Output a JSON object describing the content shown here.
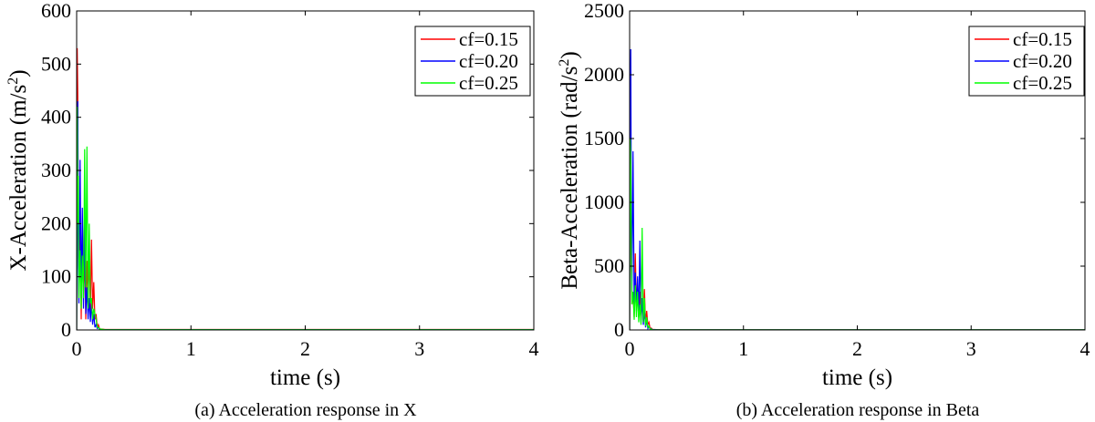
{
  "chart_data": [
    {
      "type": "line",
      "caption": "(a) Acceleration response in X",
      "xlabel": "time (s)",
      "ylabel": "X-Acceleration (m/s",
      "ylabel_sup": "2",
      "ylabel_close": ")",
      "xlim": [
        0,
        4
      ],
      "ylim": [
        0,
        600
      ],
      "xticks": [
        0,
        1,
        2,
        3,
        4
      ],
      "yticks": [
        0,
        100,
        200,
        300,
        400,
        500,
        600
      ],
      "grid": false,
      "legend_position": "top-right",
      "series": [
        {
          "name": "cf=0.15",
          "color": "#ff0000",
          "x": [
            0,
            0.005,
            0.01,
            0.015,
            0.02,
            0.03,
            0.04,
            0.05,
            0.06,
            0.07,
            0.08,
            0.09,
            0.1,
            0.11,
            0.12,
            0.13,
            0.14,
            0.15,
            0.16,
            0.17,
            0.18,
            0.19,
            0.2,
            0.25,
            4
          ],
          "y": [
            0,
            530,
            440,
            140,
            60,
            230,
            20,
            210,
            60,
            140,
            20,
            130,
            60,
            140,
            30,
            170,
            40,
            90,
            20,
            30,
            5,
            10,
            2,
            1,
            1
          ]
        },
        {
          "name": "cf=0.20",
          "color": "#0000ff",
          "x": [
            0,
            0.005,
            0.01,
            0.015,
            0.02,
            0.03,
            0.04,
            0.05,
            0.06,
            0.07,
            0.08,
            0.09,
            0.1,
            0.11,
            0.12,
            0.13,
            0.14,
            0.15,
            0.16,
            0.17,
            0.18,
            0.19,
            0.2,
            0.25,
            4
          ],
          "y": [
            0,
            230,
            430,
            120,
            50,
            320,
            60,
            230,
            40,
            210,
            30,
            80,
            20,
            60,
            15,
            50,
            10,
            30,
            5,
            10,
            3,
            5,
            1,
            0.5,
            0.5
          ]
        },
        {
          "name": "cf=0.25",
          "color": "#00ff00",
          "x": [
            0,
            0.005,
            0.01,
            0.015,
            0.02,
            0.03,
            0.04,
            0.05,
            0.06,
            0.07,
            0.08,
            0.09,
            0.1,
            0.11,
            0.12,
            0.13,
            0.14,
            0.15,
            0.16,
            0.17,
            0.18,
            0.19,
            0.2,
            0.25,
            4
          ],
          "y": [
            0,
            420,
            200,
            290,
            60,
            150,
            40,
            140,
            60,
            340,
            80,
            345,
            40,
            200,
            50,
            60,
            20,
            40,
            30,
            20,
            5,
            5,
            2,
            0.5,
            0.5
          ]
        }
      ]
    },
    {
      "type": "line",
      "caption": "(b) Acceleration response in Beta",
      "xlabel": "time (s)",
      "ylabel": "Beta-Acceleration (rad/s",
      "ylabel_sup": "2",
      "ylabel_close": ")",
      "xlim": [
        0,
        4
      ],
      "ylim": [
        0,
        2500
      ],
      "xticks": [
        0,
        1,
        2,
        3,
        4
      ],
      "yticks": [
        0,
        500,
        1000,
        1500,
        2000,
        2500
      ],
      "grid": false,
      "legend_position": "top-right",
      "series": [
        {
          "name": "cf=0.15",
          "color": "#ff0000",
          "x": [
            0,
            0.005,
            0.01,
            0.015,
            0.02,
            0.03,
            0.04,
            0.05,
            0.06,
            0.07,
            0.08,
            0.09,
            0.1,
            0.11,
            0.12,
            0.13,
            0.14,
            0.15,
            0.16,
            0.17,
            0.18,
            0.19,
            0.2,
            0.25,
            4
          ],
          "y": [
            0,
            950,
            1400,
            500,
            200,
            300,
            100,
            600,
            150,
            400,
            100,
            300,
            80,
            250,
            60,
            320,
            50,
            150,
            40,
            60,
            10,
            15,
            5,
            2,
            2
          ]
        },
        {
          "name": "cf=0.20",
          "color": "#0000ff",
          "x": [
            0,
            0.005,
            0.01,
            0.015,
            0.02,
            0.03,
            0.04,
            0.05,
            0.06,
            0.07,
            0.08,
            0.09,
            0.1,
            0.11,
            0.12,
            0.13,
            0.14,
            0.15,
            0.16,
            0.17,
            0.18,
            0.19,
            0.2,
            0.25,
            4
          ],
          "y": [
            0,
            1650,
            2200,
            900,
            300,
            1400,
            200,
            450,
            150,
            420,
            100,
            700,
            60,
            250,
            40,
            150,
            20,
            80,
            10,
            30,
            5,
            10,
            3,
            1,
            1
          ]
        },
        {
          "name": "cf=0.25",
          "color": "#00ff00",
          "x": [
            0,
            0.005,
            0.01,
            0.015,
            0.02,
            0.03,
            0.04,
            0.05,
            0.06,
            0.07,
            0.08,
            0.09,
            0.1,
            0.11,
            0.12,
            0.13,
            0.14,
            0.15,
            0.16,
            0.17,
            0.18,
            0.19,
            0.2,
            0.25,
            4
          ],
          "y": [
            0,
            1500,
            1300,
            600,
            200,
            300,
            80,
            350,
            100,
            300,
            60,
            200,
            40,
            800,
            60,
            250,
            30,
            100,
            20,
            30,
            5,
            8,
            2,
            1,
            1
          ]
        }
      ]
    }
  ]
}
